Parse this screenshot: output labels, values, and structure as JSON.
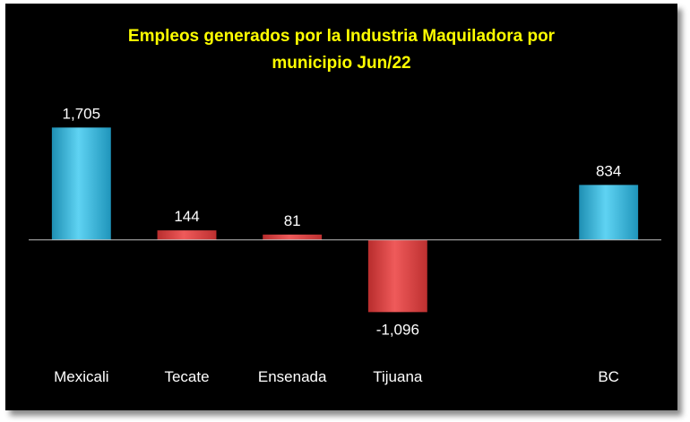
{
  "chart_data": {
    "type": "bar",
    "title_line1": "Empleos generados por la Industria Maquiladora por",
    "title_line2": "municipio Jun/22",
    "categories": [
      "Mexicali",
      "Tecate",
      "Ensenada",
      "Tijuana",
      "",
      "BC"
    ],
    "values": [
      1705,
      144,
      81,
      -1096,
      null,
      834
    ],
    "value_labels": [
      "1,705",
      "144",
      "81",
      "-1,096",
      "",
      "834"
    ],
    "ylim": [
      -1200,
      1900
    ],
    "colors": {
      "positive_large": "#3fbfe3",
      "positive_small": "#e04848",
      "negative": "#e04848",
      "title": "#ffff00",
      "text": "#ffffff",
      "background": "#000000"
    },
    "bar_color_keys": [
      "positive_large",
      "positive_small",
      "positive_small",
      "negative",
      "",
      "positive_large"
    ]
  }
}
